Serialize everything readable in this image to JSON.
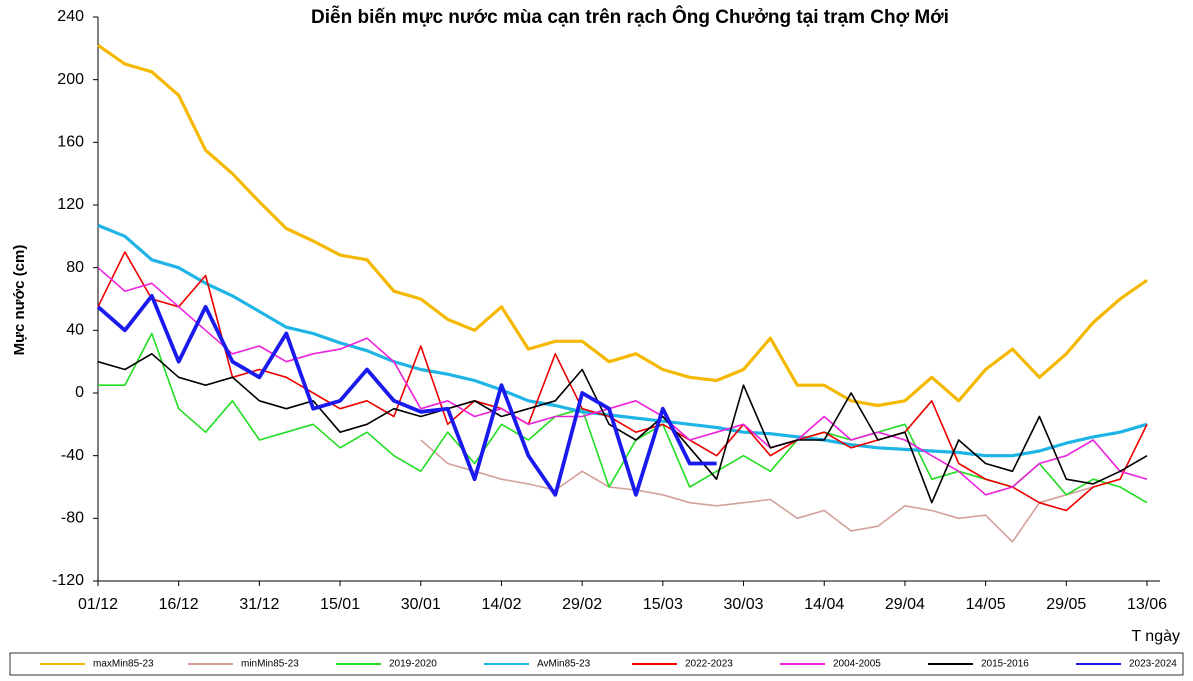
{
  "chart_data": {
    "type": "line",
    "title": "Diễn biến mực nước mùa cạn trên rạch Ông Chưởng tại trạm Chợ Mới",
    "ylabel": "Mực nước (cm)",
    "xlabel": "T ngày",
    "categories": [
      "01/12",
      null,
      null,
      "16/12",
      null,
      null,
      "31/12",
      null,
      null,
      "15/01",
      null,
      null,
      "30/01",
      null,
      null,
      "14/02",
      null,
      null,
      "29/02",
      null,
      null,
      "15/03",
      null,
      null,
      "30/03",
      null,
      null,
      "14/04",
      null,
      null,
      "29/04",
      null,
      null,
      "14/05",
      null,
      null,
      "29/05",
      null,
      null,
      "13/06"
    ],
    "ylim": [
      -120,
      240
    ],
    "yticks": [
      -120,
      -80,
      -40,
      0,
      40,
      80,
      120,
      160,
      200,
      240
    ],
    "series": [
      {
        "name": "maxMin85-23",
        "color": "#f5b800",
        "values": [
          222,
          210,
          205,
          190,
          155,
          140,
          122,
          105,
          97,
          88,
          85,
          65,
          60,
          47,
          40,
          55,
          28,
          33,
          33,
          20,
          25,
          15,
          10,
          8,
          15,
          35,
          5,
          5,
          -5,
          -8,
          -5,
          10,
          -5,
          15,
          28,
          10,
          25,
          45,
          60,
          72
        ]
      },
      {
        "name": "minMin85-23",
        "color": "#d4a19a",
        "values": [
          null,
          null,
          null,
          null,
          null,
          null,
          null,
          null,
          null,
          null,
          null,
          null,
          -30,
          -45,
          -50,
          -55,
          -58,
          -62,
          -50,
          -60,
          -62,
          -65,
          -70,
          -72,
          -70,
          -68,
          -80,
          -75,
          -88,
          -85,
          -72,
          -75,
          -80,
          -78,
          -95,
          -70,
          -65,
          -60,
          null,
          null
        ]
      },
      {
        "name": "2019-2020",
        "color": "#22dd22",
        "values": [
          5,
          5,
          38,
          -10,
          -25,
          -5,
          -30,
          -25,
          -20,
          -35,
          -25,
          -40,
          -50,
          -25,
          -45,
          -20,
          -30,
          -15,
          -10,
          -60,
          -30,
          -20,
          -60,
          -50,
          -40,
          -50,
          -30,
          -25,
          -30,
          -25,
          -20,
          -55,
          -50,
          -55,
          -60,
          -45,
          -65,
          -55,
          -60,
          -70
        ]
      },
      {
        "name": "AvMin85-23",
        "color": "#1eb4e6",
        "values": [
          107,
          100,
          85,
          80,
          70,
          62,
          52,
          42,
          38,
          32,
          27,
          20,
          15,
          12,
          8,
          2,
          -5,
          -8,
          -12,
          -14,
          -16,
          -18,
          -20,
          -22,
          -25,
          -26,
          -28,
          -30,
          -33,
          -35,
          -36,
          -37,
          -38,
          -40,
          -40,
          -37,
          -32,
          -28,
          -25,
          -20
        ]
      },
      {
        "name": "2022-2023",
        "color": "#ee0000",
        "values": [
          55,
          90,
          60,
          55,
          75,
          10,
          15,
          10,
          0,
          -10,
          -5,
          -15,
          30,
          -20,
          -5,
          -10,
          -20,
          25,
          -10,
          -15,
          -25,
          -20,
          -30,
          -40,
          -20,
          -40,
          -30,
          -25,
          -35,
          -30,
          -25,
          -5,
          -45,
          -55,
          -60,
          -70,
          -75,
          -60,
          -55,
          -20
        ]
      },
      {
        "name": "2004-2005",
        "color": "#ee22dd",
        "values": [
          80,
          65,
          70,
          55,
          40,
          25,
          30,
          20,
          25,
          28,
          35,
          20,
          -10,
          -5,
          -15,
          -10,
          -20,
          -15,
          -15,
          -10,
          -5,
          -15,
          -30,
          -25,
          -20,
          -35,
          -30,
          -15,
          -30,
          -25,
          -30,
          -40,
          -50,
          -65,
          -60,
          -45,
          -40,
          -30,
          -50,
          -55
        ]
      },
      {
        "name": "2015-2016",
        "color": "#000000",
        "values": [
          20,
          15,
          25,
          10,
          5,
          10,
          -5,
          -10,
          -5,
          -25,
          -20,
          -10,
          -15,
          -10,
          -5,
          -15,
          -10,
          -5,
          15,
          -20,
          -30,
          -15,
          -35,
          -55,
          5,
          -35,
          -30,
          -30,
          0,
          -30,
          -25,
          -70,
          -30,
          -45,
          -50,
          -15,
          -55,
          -58,
          -50,
          -40
        ]
      },
      {
        "name": "2023-2024",
        "color": "#1a1aee",
        "values": [
          55,
          40,
          62,
          20,
          55,
          20,
          10,
          38,
          -10,
          -5,
          15,
          -5,
          -12,
          -10,
          -55,
          5,
          -40,
          -65,
          0,
          -10,
          -65,
          -10,
          -45,
          -45,
          null,
          null,
          null,
          null,
          null,
          null,
          null,
          null,
          null,
          null,
          null,
          null,
          null,
          null,
          null,
          null
        ]
      }
    ]
  }
}
